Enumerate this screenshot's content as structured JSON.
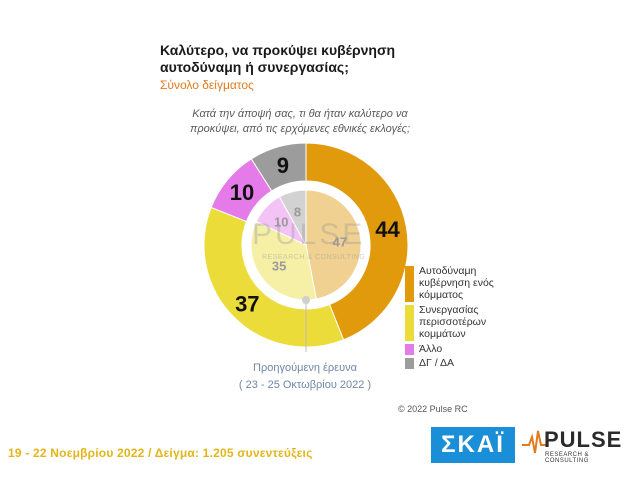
{
  "title": "Καλύτερο, να προκύψει κυβέρνηση αυτοδύναμη ή συνεργασίας;",
  "subtitle": "Σύνολο δείγματος",
  "question": "Κατά την άποψή σας, τι θα ήταν καλύτερο να προκύψει, από τις ερχόμενες εθνικές εκλογές;",
  "previous_survey_label": "Προηγούμενη έρευνα",
  "previous_survey_dates": "( 23 - 25 Οκτωβρίου 2022 )",
  "copyright": "© 2022 Pulse RC",
  "footer": "19 - 22 Νοεμβρίου 2022 / Δείγμα: 1.205 συνεντεύξεις",
  "logos": {
    "skai": "ΣΚΑΪ",
    "pulse": "PULSE",
    "pulse_sub": "RESEARCH & CONSULTING",
    "watermark": "PULSE",
    "watermark_sub": "RESEARCH & CONSULTING"
  },
  "chart_data": {
    "type": "pie",
    "categories": [
      "Αυτοδύναμη κυβέρνηση ενός κόμματος",
      "Συνεργασίας περισσοτέρων κομμάτων",
      "Άλλο",
      "ΔΓ / ΔΑ"
    ],
    "colors": [
      "#e09a0c",
      "#ecdc3a",
      "#e57be8",
      "#9c9c9c"
    ],
    "series": [
      {
        "name": "Προηγούμενη έρευνα",
        "values": [
          47,
          35,
          10,
          8
        ]
      },
      {
        "values": [
          44,
          37,
          10,
          9
        ]
      }
    ]
  }
}
